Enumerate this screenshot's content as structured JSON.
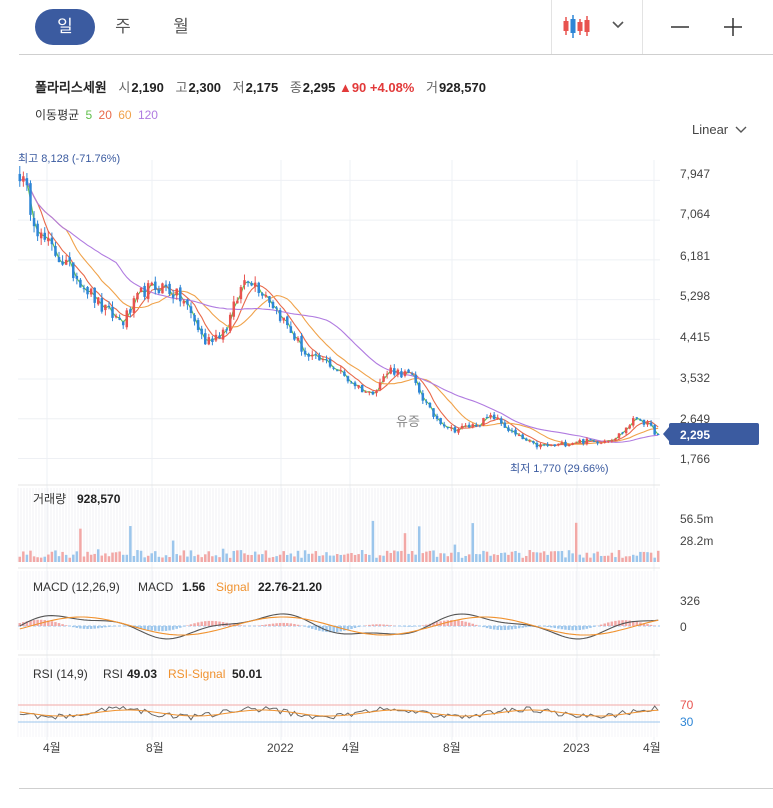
{
  "period_tabs": [
    {
      "label": "일",
      "active": true
    },
    {
      "label": "주",
      "active": false
    },
    {
      "label": "월",
      "active": false
    }
  ],
  "toolbar": {
    "chart_type_icon": "candlestick-icon",
    "dropdown_icon": "chevron-down-icon",
    "zoom_out_icon": "minus-icon",
    "zoom_in_icon": "plus-icon"
  },
  "quote": {
    "name": "폴라리스세원",
    "open_label": "시",
    "open": "2,190",
    "high_label": "고",
    "high": "2,300",
    "low_label": "저",
    "low": "2,175",
    "close_label": "종",
    "close": "2,295",
    "change": "▲90",
    "change_pct": "+4.08%",
    "volume_label": "거",
    "volume": "928,570"
  },
  "ma_legend": {
    "label": "이동평균",
    "periods": [
      "5",
      "20",
      "60",
      "120"
    ],
    "colors": [
      "#5fbf4a",
      "#e8694a",
      "#f0a24a",
      "#b07be0"
    ]
  },
  "scale_select": {
    "value": "Linear"
  },
  "colors": {
    "up": "#e8534f",
    "down": "#2e86d6",
    "accent": "#3b5ba0",
    "signal": "#f0922f",
    "macd": "#555555"
  },
  "chart_data": [
    {
      "type": "candlestick",
      "panel": "price",
      "x_ticks": [
        "4월",
        "8월",
        "2022",
        "4월",
        "8월",
        "2023",
        "4월"
      ],
      "y_ticks": [
        7947,
        7064,
        6181,
        5298,
        4415,
        3532,
        2649,
        1766
      ],
      "y_tick_labels": [
        "7,947",
        "7,064",
        "6,181",
        "5,298",
        "4,415",
        "3,532",
        "2,649",
        "1,766"
      ],
      "ylim": [
        1400,
        8400
      ],
      "close_points": [
        8128,
        6700,
        6200,
        5700,
        5100,
        4800,
        5500,
        5600,
        5250,
        4350,
        4650,
        5850,
        5400,
        4700,
        4000,
        3900,
        3500,
        3200,
        3750,
        3600,
        2750,
        2400,
        2500,
        2700,
        2300,
        2050,
        2050,
        2150,
        2150,
        2250,
        2700,
        2295
      ],
      "max_label": "최고 8,128 (-71.76%)",
      "min_label": "최저 1,770 (29.66%)",
      "annotation": "유증",
      "last_price_label": "2,295",
      "legend": [
        "5",
        "20",
        "60",
        "120"
      ]
    },
    {
      "type": "bar",
      "panel": "volume",
      "title": "거래량",
      "value": "928,570",
      "y_tick_labels": [
        "56.5m",
        "28.2m"
      ]
    },
    {
      "type": "line",
      "panel": "macd",
      "title": "MACD (12,26,9)",
      "macd_label": "MACD",
      "macd_value": "1.56",
      "signal_label": "Signal",
      "signal_value": "22.76-21.20",
      "y_tick_labels": [
        "326",
        "0"
      ]
    },
    {
      "type": "line",
      "panel": "rsi",
      "title": "RSI (14,9)",
      "rsi_label": "RSI",
      "rsi_value": "49.03",
      "signal_label": "RSI-Signal",
      "signal_value": "50.01",
      "y_tick_labels": [
        "70",
        "30"
      ]
    }
  ]
}
